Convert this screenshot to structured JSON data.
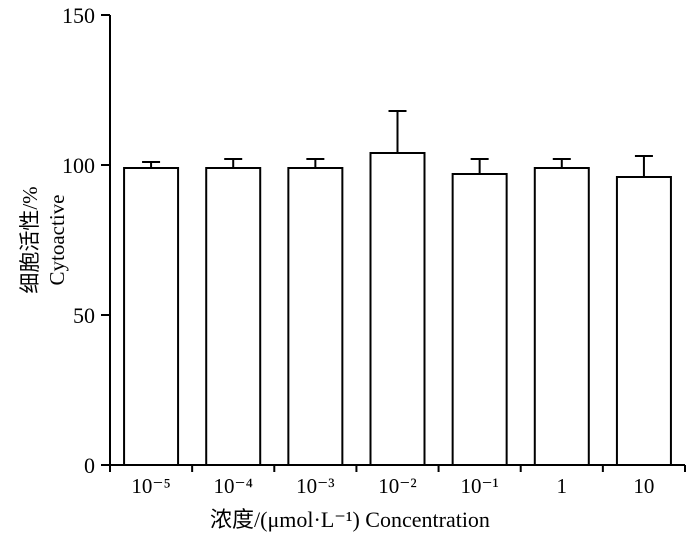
{
  "chart_data": {
    "type": "bar",
    "title": "",
    "categories": [
      "10⁻⁵",
      "10⁻⁴",
      "10⁻³",
      "10⁻²",
      "10⁻¹",
      "1",
      "10"
    ],
    "values": [
      99,
      99,
      99,
      104,
      97,
      99,
      96
    ],
    "errors_upper": [
      2,
      3,
      3,
      14,
      5,
      3,
      7
    ],
    "xlabel": "浓度/(μmol·L⁻¹)  Concentration",
    "ylabel_line1": "细胞活性/%",
    "ylabel_line2": "Cytoactive",
    "ylim": [
      0,
      150
    ],
    "yticks": [
      0,
      50,
      100,
      150
    ],
    "grid": "off",
    "legend": "none",
    "bar_fill": "#ffffff",
    "bar_stroke": "#000000",
    "axis_color": "#000000",
    "background": "#ffffff"
  }
}
